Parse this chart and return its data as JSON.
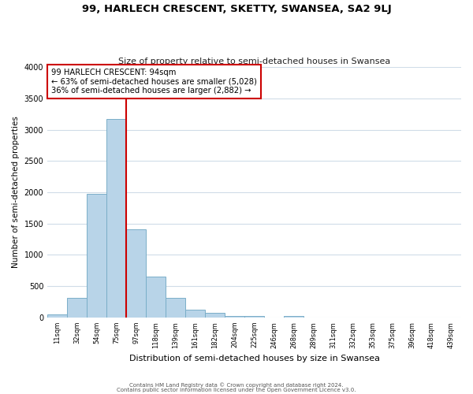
{
  "title": "99, HARLECH CRESCENT, SKETTY, SWANSEA, SA2 9LJ",
  "subtitle": "Size of property relative to semi-detached houses in Swansea",
  "xlabel": "Distribution of semi-detached houses by size in Swansea",
  "ylabel": "Number of semi-detached properties",
  "bin_labels": [
    "11sqm",
    "32sqm",
    "54sqm",
    "75sqm",
    "97sqm",
    "118sqm",
    "139sqm",
    "161sqm",
    "182sqm",
    "204sqm",
    "225sqm",
    "246sqm",
    "268sqm",
    "289sqm",
    "311sqm",
    "332sqm",
    "353sqm",
    "375sqm",
    "396sqm",
    "418sqm",
    "439sqm"
  ],
  "bar_values": [
    50,
    320,
    1980,
    3170,
    1410,
    650,
    310,
    130,
    70,
    20,
    20,
    0,
    20,
    0,
    0,
    0,
    0,
    0,
    0,
    0,
    0
  ],
  "bar_color": "#b8d4e8",
  "bar_edge_color": "#7aaec8",
  "property_line_color": "#cc0000",
  "annotation_title": "99 HARLECH CRESCENT: 94sqm",
  "annotation_line1": "← 63% of semi-detached houses are smaller (5,028)",
  "annotation_line2": "36% of semi-detached houses are larger (2,882) →",
  "annotation_box_facecolor": "white",
  "annotation_box_edgecolor": "#cc0000",
  "ylim": [
    0,
    4000
  ],
  "yticks": [
    0,
    500,
    1000,
    1500,
    2000,
    2500,
    3000,
    3500,
    4000
  ],
  "footer1": "Contains HM Land Registry data © Crown copyright and database right 2024.",
  "footer2": "Contains public sector information licensed under the Open Government Licence v3.0.",
  "background_color": "#ffffff",
  "plot_background": "#ffffff",
  "grid_color": "#d0dce8",
  "line_x_index": 4
}
